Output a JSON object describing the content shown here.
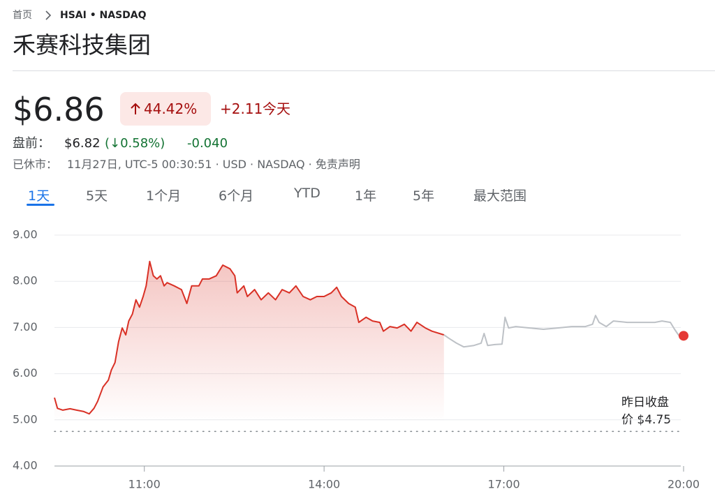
{
  "breadcrumb": {
    "home": "首页",
    "ticker": "HSAI • NASDAQ"
  },
  "title": "禾赛科技集团",
  "quote": {
    "price": "$6.86",
    "change_percent": "44.42%",
    "change": "+2.11",
    "period": "今天"
  },
  "premarket": {
    "label": "盘前：",
    "price": "$6.82",
    "change_percent": "(↓0.58%)",
    "change": "-0.040"
  },
  "status": {
    "label": "已休市：",
    "details": "11月27日, UTC-5 00:30:51 · USD · NASDAQ · 免责声明"
  },
  "tabs": [
    "1天",
    "5天",
    "1个月",
    "6个月",
    "YTD",
    "1年",
    "5年",
    "最大范围"
  ],
  "selected_tab": 0,
  "chart_data": {
    "type": "line",
    "xlim": [
      9.5,
      20
    ],
    "xticks": [
      {
        "value": 11,
        "label": "11:00"
      },
      {
        "value": 14,
        "label": "14:00"
      },
      {
        "value": 17,
        "label": "17:00"
      },
      {
        "value": 20,
        "label": "20:00"
      }
    ],
    "ylim": [
      4,
      9
    ],
    "yticks": [
      {
        "value": 4,
        "label": "4.00"
      },
      {
        "value": 5,
        "label": "5.00"
      },
      {
        "value": 6,
        "label": "6.00"
      },
      {
        "value": 7,
        "label": "7.00"
      },
      {
        "value": 8,
        "label": "8.00"
      },
      {
        "value": 9,
        "label": "9.00"
      }
    ],
    "grid": true,
    "series": [
      {
        "color": "#d93025",
        "area": true,
        "x": [
          9.5,
          9.55,
          9.64,
          9.76,
          9.87,
          9.99,
          10.08,
          10.16,
          10.22,
          10.31,
          10.4,
          10.45,
          10.51,
          10.57,
          10.63,
          10.69,
          10.74,
          10.8,
          10.86,
          10.92,
          10.98,
          11.03,
          11.09,
          11.15,
          11.21,
          11.27,
          11.33,
          11.38,
          11.5,
          11.62,
          11.71,
          11.79,
          11.91,
          11.97,
          12.08,
          12.2,
          12.31,
          12.43,
          12.51,
          12.55,
          12.66,
          12.72,
          12.84,
          12.95,
          13.07,
          13.19,
          13.3,
          13.42,
          13.53,
          13.65,
          13.77,
          13.88,
          14.0,
          14.12,
          14.21,
          14.29,
          14.41,
          14.52,
          14.58,
          14.7,
          14.81,
          14.93,
          14.99,
          15.1,
          15.22,
          15.34,
          15.45,
          15.55,
          15.69,
          15.8,
          16.0
        ],
        "values": [
          5.48,
          5.25,
          5.21,
          5.24,
          5.21,
          5.18,
          5.13,
          5.25,
          5.4,
          5.71,
          5.86,
          6.08,
          6.24,
          6.69,
          6.99,
          6.84,
          7.14,
          7.29,
          7.6,
          7.44,
          7.67,
          7.9,
          8.43,
          8.12,
          8.05,
          8.12,
          7.9,
          7.97,
          7.9,
          7.82,
          7.52,
          7.9,
          7.9,
          8.05,
          8.05,
          8.12,
          8.35,
          8.27,
          8.12,
          7.75,
          7.9,
          7.67,
          7.82,
          7.6,
          7.75,
          7.6,
          7.82,
          7.75,
          7.9,
          7.67,
          7.6,
          7.67,
          7.67,
          7.75,
          7.87,
          7.67,
          7.52,
          7.44,
          7.11,
          7.22,
          7.14,
          7.11,
          6.92,
          7.02,
          6.99,
          7.07,
          6.92,
          7.11,
          6.99,
          6.92,
          6.84
        ]
      },
      {
        "color": "#bdc1c6",
        "area": false,
        "x": [
          16.0,
          16.09,
          16.21,
          16.33,
          16.5,
          16.62,
          16.67,
          16.73,
          16.85,
          16.97,
          17.02,
          17.08,
          17.2,
          17.43,
          17.66,
          17.9,
          18.13,
          18.36,
          18.48,
          18.53,
          18.59,
          18.71,
          18.83,
          19.06,
          19.29,
          19.52,
          19.64,
          19.78,
          19.85,
          19.93
        ],
        "values": [
          6.84,
          6.76,
          6.66,
          6.58,
          6.61,
          6.66,
          6.87,
          6.61,
          6.63,
          6.64,
          7.22,
          6.99,
          7.02,
          6.99,
          6.96,
          6.99,
          7.02,
          7.02,
          7.07,
          7.26,
          7.11,
          7.02,
          7.14,
          7.11,
          7.11,
          7.11,
          7.14,
          7.11,
          6.96,
          6.81
        ]
      }
    ],
    "marker": {
      "x": 20,
      "y": 6.82,
      "color": "#e53935"
    },
    "previous_close": {
      "label": "昨日收盘价",
      "value": 4.75,
      "value_label": "$4.75"
    }
  }
}
